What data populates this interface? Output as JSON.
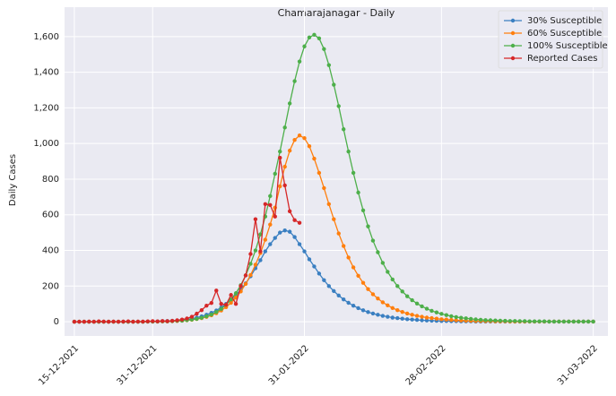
{
  "chart_data": {
    "type": "line",
    "title": "Chamarajanagar - Daily",
    "ylabel": "Daily Cases",
    "x": [
      "15-12-2021",
      "16-12-2021",
      "17-12-2021",
      "18-12-2021",
      "19-12-2021",
      "20-12-2021",
      "21-12-2021",
      "22-12-2021",
      "23-12-2021",
      "24-12-2021",
      "25-12-2021",
      "26-12-2021",
      "27-12-2021",
      "28-12-2021",
      "29-12-2021",
      "30-12-2021",
      "31-12-2021",
      "01-01-2022",
      "02-01-2022",
      "03-01-2022",
      "04-01-2022",
      "05-01-2022",
      "06-01-2022",
      "07-01-2022",
      "08-01-2022",
      "09-01-2022",
      "10-01-2022",
      "11-01-2022",
      "12-01-2022",
      "13-01-2022",
      "14-01-2022",
      "15-01-2022",
      "16-01-2022",
      "17-01-2022",
      "18-01-2022",
      "19-01-2022",
      "20-01-2022",
      "21-01-2022",
      "22-01-2022",
      "23-01-2022",
      "24-01-2022",
      "25-01-2022",
      "26-01-2022",
      "27-01-2022",
      "28-01-2022",
      "29-01-2022",
      "30-01-2022",
      "31-01-2022",
      "01-02-2022",
      "02-02-2022",
      "03-02-2022",
      "04-02-2022",
      "05-02-2022",
      "06-02-2022",
      "07-02-2022",
      "08-02-2022",
      "09-02-2022",
      "10-02-2022",
      "11-02-2022",
      "12-02-2022",
      "13-02-2022",
      "14-02-2022",
      "15-02-2022",
      "16-02-2022",
      "17-02-2022",
      "18-02-2022",
      "19-02-2022",
      "20-02-2022",
      "21-02-2022",
      "22-02-2022",
      "23-02-2022",
      "24-02-2022",
      "25-02-2022",
      "26-02-2022",
      "27-02-2022",
      "28-02-2022",
      "01-03-2022",
      "02-03-2022",
      "03-03-2022",
      "04-03-2022",
      "05-03-2022",
      "06-03-2022",
      "07-03-2022",
      "08-03-2022",
      "09-03-2022",
      "10-03-2022",
      "11-03-2022",
      "12-03-2022",
      "13-03-2022",
      "14-03-2022",
      "15-03-2022",
      "16-03-2022",
      "17-03-2022",
      "18-03-2022",
      "19-03-2022",
      "20-03-2022",
      "21-03-2022",
      "22-03-2022",
      "23-03-2022",
      "24-03-2022",
      "25-03-2022",
      "26-03-2022",
      "27-03-2022",
      "28-03-2022",
      "29-03-2022",
      "30-03-2022",
      "31-03-2022"
    ],
    "series": [
      {
        "name": "30% Susceptible",
        "color": "#3a7fc1",
        "values": [
          0,
          0,
          0,
          0,
          0,
          0,
          0,
          0,
          0,
          0,
          0,
          0,
          0,
          0,
          0,
          1,
          1,
          2,
          3,
          4,
          5,
          7,
          10,
          13,
          17,
          23,
          30,
          39,
          50,
          63,
          80,
          100,
          123,
          150,
          180,
          215,
          255,
          300,
          345,
          395,
          435,
          470,
          500,
          512,
          505,
          475,
          435,
          395,
          350,
          310,
          270,
          233,
          200,
          172,
          147,
          125,
          106,
          90,
          76,
          64,
          54,
          46,
          39,
          33,
          28,
          23,
          20,
          17,
          14,
          12,
          10,
          8,
          7,
          6,
          5,
          4,
          4,
          3,
          3,
          2,
          2,
          2,
          1,
          1,
          1,
          1,
          1,
          1,
          1,
          1,
          1,
          1,
          1,
          1,
          1,
          1,
          1,
          1,
          1,
          1,
          1,
          1,
          1,
          1,
          1,
          1,
          1
        ]
      },
      {
        "name": "60% Susceptible",
        "color": "#ff7f0e",
        "values": [
          0,
          0,
          0,
          0,
          0,
          0,
          0,
          0,
          0,
          0,
          0,
          0,
          0,
          0,
          0,
          1,
          1,
          1,
          2,
          2,
          3,
          4,
          6,
          8,
          11,
          15,
          20,
          27,
          36,
          48,
          63,
          82,
          106,
          135,
          170,
          212,
          262,
          320,
          385,
          460,
          545,
          640,
          760,
          870,
          960,
          1020,
          1045,
          1030,
          985,
          915,
          835,
          750,
          660,
          575,
          495,
          425,
          360,
          305,
          258,
          218,
          183,
          154,
          130,
          109,
          92,
          77,
          65,
          55,
          46,
          39,
          33,
          28,
          23,
          20,
          17,
          14,
          12,
          10,
          8,
          7,
          6,
          5,
          4,
          4,
          3,
          3,
          2,
          2,
          2,
          1,
          1,
          1,
          1,
          1,
          1,
          1,
          1,
          1,
          1,
          1,
          1,
          1,
          1,
          1,
          1,
          1,
          1
        ]
      },
      {
        "name": "100% Susceptible",
        "color": "#4daf4a",
        "values": [
          0,
          0,
          0,
          0,
          0,
          0,
          0,
          0,
          0,
          0,
          0,
          0,
          0,
          0,
          0,
          1,
          1,
          1,
          2,
          2,
          3,
          5,
          6,
          9,
          12,
          16,
          22,
          30,
          40,
          54,
          72,
          95,
          125,
          160,
          205,
          260,
          325,
          400,
          490,
          590,
          705,
          830,
          955,
          1090,
          1225,
          1350,
          1460,
          1545,
          1595,
          1610,
          1590,
          1530,
          1440,
          1330,
          1210,
          1080,
          955,
          835,
          725,
          625,
          535,
          455,
          390,
          330,
          280,
          237,
          200,
          170,
          143,
          121,
          102,
          86,
          73,
          61,
          52,
          44,
          37,
          31,
          26,
          22,
          19,
          16,
          13,
          11,
          9,
          8,
          7,
          6,
          5,
          4,
          4,
          3,
          3,
          2,
          2,
          2,
          2,
          1,
          1,
          1,
          1,
          1,
          1,
          1,
          1,
          1,
          1
        ]
      },
      {
        "name": "Reported Cases",
        "color": "#d62728",
        "values": [
          0,
          0,
          0,
          1,
          0,
          2,
          1,
          0,
          1,
          0,
          1,
          2,
          0,
          1,
          1,
          2,
          3,
          2,
          4,
          3,
          5,
          8,
          12,
          18,
          28,
          45,
          65,
          90,
          105,
          175,
          100,
          95,
          150,
          100,
          200,
          260,
          380,
          575,
          395,
          660,
          655,
          590,
          920,
          765,
          620,
          570,
          555,
          null,
          null,
          null,
          null,
          null,
          null,
          null,
          null,
          null,
          null,
          null,
          null,
          null,
          null,
          null,
          null,
          null,
          null,
          null,
          null,
          null,
          null,
          null,
          null,
          null,
          null,
          null,
          null,
          null,
          null,
          null,
          null,
          null,
          null,
          null,
          null,
          null,
          null,
          null,
          null,
          null,
          null,
          null,
          null,
          null,
          null,
          null,
          null,
          null,
          null,
          null,
          null,
          null,
          null,
          null,
          null,
          null,
          null,
          null,
          null
        ]
      }
    ],
    "xlim": [
      "13-12-2021",
      "03-04-2022"
    ],
    "xticks": [
      "15-12-2021",
      "31-12-2021",
      "31-01-2022",
      "28-02-2022",
      "31-03-2022"
    ],
    "ylim": [
      -80,
      1765
    ],
    "yticks": [
      0,
      200,
      400,
      600,
      800,
      {
        "value": 1000,
        "label": "1,000"
      },
      {
        "value": 1200,
        "label": "1,200"
      },
      {
        "value": 1400,
        "label": "1,400"
      },
      {
        "value": 1600,
        "label": "1,600"
      }
    ],
    "grid": true,
    "legend": "upper right"
  }
}
